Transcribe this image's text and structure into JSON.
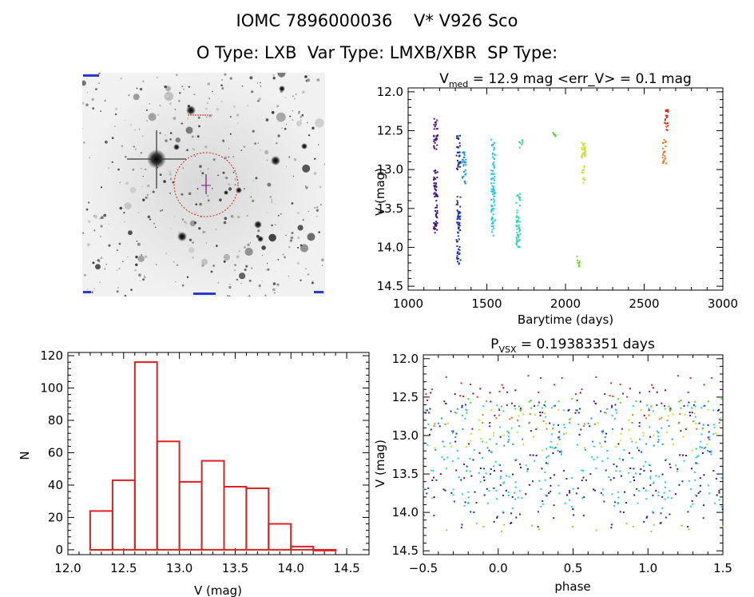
{
  "header": {
    "line1": "IOMC 7896000036    V* V926 Sco",
    "line2": "O Type: LXB  Var Type: LMXB/XBR  SP Type:"
  },
  "sky_image": {
    "description_label": ""
  },
  "chart_data": [
    {
      "type": "scatter",
      "id": "lightcurve",
      "title_main": "V",
      "title_sub": "med",
      "title_rest": " = 12.9 mag <err_V> = 0.1 mag",
      "xlabel": "Barytime (days)",
      "ylabel": "V (mag)",
      "xlim": [
        1000,
        3000
      ],
      "ylim": [
        14.55,
        11.95
      ],
      "xticks": [
        1000,
        1500,
        2000,
        2500,
        3000
      ],
      "xticklabels": [
        "1000",
        "1500",
        "2000",
        "2500",
        "3000"
      ],
      "yticks": [
        12.0,
        12.5,
        13.0,
        13.5,
        14.0,
        14.5
      ],
      "yticklabels": [
        "12.0",
        "12.5",
        "13.0",
        "13.5",
        "14.0",
        "14.5"
      ],
      "groups": [
        {
          "x": 1175,
          "ymin": 12.32,
          "ymax": 12.75,
          "color": "#5b0f8c"
        },
        {
          "x": 1175,
          "ymin": 12.98,
          "ymax": 13.82,
          "color": "#3d0a8a"
        },
        {
          "x": 1320,
          "ymin": 12.55,
          "ymax": 13.0,
          "color": "#1c2aa8"
        },
        {
          "x": 1320,
          "ymin": 13.35,
          "ymax": 14.22,
          "color": "#1a2fae"
        },
        {
          "x": 1355,
          "ymin": 12.75,
          "ymax": 13.2,
          "color": "#1e9ad4"
        },
        {
          "x": 1540,
          "ymin": 12.6,
          "ymax": 13.85,
          "color": "#27c9e0"
        },
        {
          "x": 1700,
          "ymin": 13.25,
          "ymax": 14.0,
          "color": "#28d6b4"
        },
        {
          "x": 1715,
          "ymin": 12.62,
          "ymax": 12.72,
          "color": "#34d86a"
        },
        {
          "x": 1925,
          "ymin": 12.52,
          "ymax": 12.58,
          "color": "#46d62c"
        },
        {
          "x": 2080,
          "ymin": 14.1,
          "ymax": 14.25,
          "color": "#7fd83a"
        },
        {
          "x": 2115,
          "ymin": 12.65,
          "ymax": 13.2,
          "color": "#c8e022"
        },
        {
          "x": 2630,
          "ymin": 12.6,
          "ymax": 12.92,
          "color": "#e8781a"
        },
        {
          "x": 2640,
          "ymin": 12.22,
          "ymax": 12.5,
          "color": "#d4301a"
        }
      ]
    },
    {
      "type": "bar",
      "id": "histogram",
      "xlabel": "V (mag)",
      "ylabel": "N",
      "xlim": [
        12.0,
        14.7
      ],
      "ylim": [
        -3,
        122
      ],
      "xticks": [
        12.0,
        12.5,
        13.0,
        13.5,
        14.0,
        14.5
      ],
      "xticklabels": [
        "12.0",
        "12.5",
        "13.0",
        "13.5",
        "14.0",
        "14.5"
      ],
      "yticks": [
        0,
        20,
        40,
        60,
        80,
        100,
        120
      ],
      "yticklabels": [
        "0",
        "20",
        "40",
        "60",
        "80",
        "100",
        "120"
      ],
      "bin_edges": [
        12.2,
        12.4,
        12.6,
        12.8,
        13.0,
        13.2,
        13.4,
        13.6,
        13.8,
        14.0,
        14.2,
        14.4
      ],
      "values": [
        24,
        43,
        116,
        67,
        42,
        55,
        39,
        38,
        16,
        2,
        0
      ],
      "bar_color": "#e02020"
    },
    {
      "type": "scatter",
      "id": "phased",
      "title_main": "P",
      "title_sub": "VSX",
      "title_rest": " = 0.19383351 days",
      "xlabel": "phase",
      "ylabel": "V (mag)",
      "xlim": [
        -0.5,
        1.5
      ],
      "ylim": [
        14.55,
        11.95
      ],
      "xticks": [
        -0.5,
        0.0,
        0.5,
        1.0,
        1.5
      ],
      "xticklabels": [
        "−0.5",
        "0.0",
        "0.5",
        "1.0",
        "1.5"
      ],
      "yticks": [
        12.0,
        12.5,
        13.0,
        13.5,
        14.0,
        14.5
      ],
      "yticklabels": [
        "12.0",
        "12.5",
        "13.0",
        "13.5",
        "14.0",
        "14.5"
      ],
      "period_days": 0.19383351
    }
  ]
}
